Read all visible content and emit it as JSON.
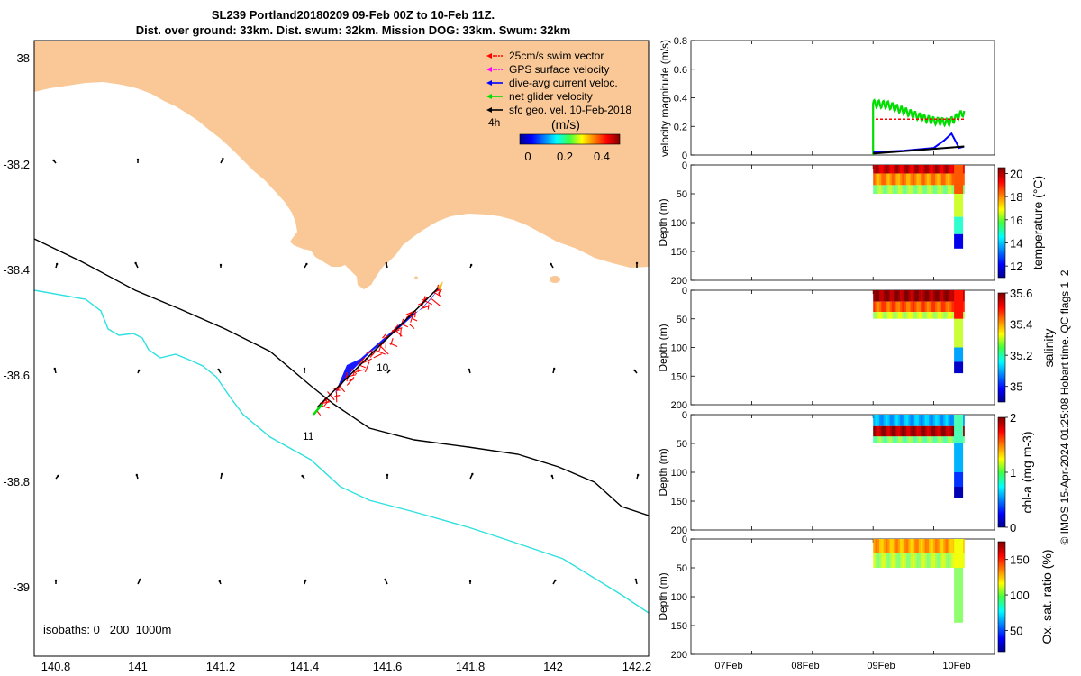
{
  "title_line1": "SL239 Portland20180209 09-Feb 00Z to 10-Feb 11Z.",
  "title_line2": "Dist. over ground: 33km. Dist. swum: 32km. Mission DOG: 33km. Swum: 32km",
  "side_note": "© IMOS 15-Apr-2024 01:25:08 Hobart time. QC flags 1  2",
  "colors": {
    "land": "#f9c896",
    "isobath_200": "#000000",
    "isobath_1000": "#2fe0e0",
    "swim": "#ff0000",
    "gps": "#ff00ff",
    "dive_avg": "#0000ff",
    "net": "#00dd00",
    "sfc_geo": "#000000",
    "mean_curve": "#ff0000",
    "depth_avg_curve": "#000000"
  },
  "map": {
    "x_ticks": [
      "140.8",
      "141",
      "141.2",
      "141.4",
      "141.6",
      "141.8",
      "142",
      "142.2"
    ],
    "y_ticks": [
      "-38",
      "-38.2",
      "-38.4",
      "-38.6",
      "-38.8",
      "-39"
    ],
    "legend": {
      "items": [
        {
          "label": "25cm/s swim vector",
          "color_key": "swim"
        },
        {
          "label": "GPS surface velocity",
          "color_key": "gps"
        },
        {
          "label": "dive-avg current veloc.",
          "color_key": "dive_avg"
        },
        {
          "label": "net glider velocity",
          "color_key": "net"
        },
        {
          "label": "sfc geo. vel. 10-Feb-2018",
          "color_key": "sfc_geo"
        }
      ],
      "interval_label": "4h",
      "colorbar_title": "(m/s)",
      "colorbar_ticks": [
        "0",
        "0.2",
        "0.4"
      ]
    },
    "day_labels": [
      "10",
      "11"
    ],
    "isobath_label": "isobaths: 0   200  1000m"
  },
  "chart_data": [
    {
      "type": "line",
      "panel": "velocity magnitude",
      "ylabel": "velocity magnitude (m/s)",
      "ylim": [
        0,
        0.8
      ],
      "yticks": [
        "0",
        "0.2",
        "0.4",
        "0.6",
        "0.8"
      ],
      "x_dates": [
        "2018-02-06",
        "2018-02-11"
      ],
      "series": [
        {
          "color_key": "net",
          "style": "oscillating",
          "x": [
            "09Feb 00h",
            "09Feb 06h",
            "09Feb 12h",
            "09Feb 18h",
            "10Feb 00h",
            "10Feb 06h",
            "10Feb 12h"
          ],
          "values": [
            0.36,
            0.35,
            0.31,
            0.27,
            0.24,
            0.23,
            0.3
          ]
        },
        {
          "color_key": "mean_curve",
          "style": "dashed",
          "x": [
            "09Feb 01h",
            "10Feb 12h"
          ],
          "values": [
            0.25,
            0.25
          ]
        },
        {
          "color_key": "dive_avg",
          "style": "solid",
          "x": [
            "09Feb 00h",
            "09Feb 12h",
            "10Feb 00h",
            "10Feb 04h",
            "10Feb 07h",
            "10Feb 10h",
            "10Feb 12h"
          ],
          "values": [
            0.02,
            0.03,
            0.05,
            0.1,
            0.15,
            0.05,
            0.06
          ]
        },
        {
          "color_key": "depth_avg_curve",
          "style": "solid",
          "x": [
            "09Feb 00h",
            "10Feb 12h"
          ],
          "values": [
            0.01,
            0.06
          ]
        }
      ]
    },
    {
      "type": "heatmap",
      "panel": "temperature",
      "ylabel": "Depth (m)",
      "yticks": [
        "0",
        "50",
        "100",
        "150",
        "200"
      ],
      "ylim": [
        200,
        0
      ],
      "colorbar_label": "temperature (°C)",
      "colorbar_ticks": [
        "12",
        "14",
        "16",
        "18",
        "20"
      ],
      "clim": [
        11,
        20.5
      ],
      "x_range": [
        "09Feb 00h",
        "10Feb 12h"
      ],
      "depth_layers": [
        {
          "depth_to": 15,
          "value": 19.8
        },
        {
          "depth_to": 35,
          "value": 18.0
        },
        {
          "depth_to": 50,
          "value": 16.0
        }
      ],
      "deep_profile": {
        "x": "10Feb 08h",
        "layers": [
          {
            "depth_to": 50,
            "value": 18.5
          },
          {
            "depth_to": 90,
            "value": 16.5
          },
          {
            "depth_to": 120,
            "value": 15
          },
          {
            "depth_to": 145,
            "value": 12
          }
        ]
      }
    },
    {
      "type": "heatmap",
      "panel": "salinity",
      "ylabel": "Depth (m)",
      "yticks": [
        "0",
        "50",
        "100",
        "150",
        "200"
      ],
      "ylim": [
        200,
        0
      ],
      "colorbar_label": "salinity",
      "colorbar_ticks": [
        "35",
        "35.2",
        "35.4",
        "35.6"
      ],
      "clim": [
        34.9,
        35.6
      ],
      "x_range": [
        "09Feb 00h",
        "10Feb 12h"
      ],
      "depth_layers": [
        {
          "depth_to": 20,
          "value": 35.58
        },
        {
          "depth_to": 38,
          "value": 35.45
        },
        {
          "depth_to": 50,
          "value": 35.3
        }
      ],
      "deep_profile": {
        "x": "10Feb 08h",
        "layers": [
          {
            "depth_to": 50,
            "value": 35.5
          },
          {
            "depth_to": 100,
            "value": 35.3
          },
          {
            "depth_to": 125,
            "value": 35.1
          },
          {
            "depth_to": 145,
            "value": 34.95
          }
        ]
      }
    },
    {
      "type": "heatmap",
      "panel": "chl-a",
      "ylabel": "Depth (m)",
      "yticks": [
        "0",
        "50",
        "100",
        "150",
        "200"
      ],
      "ylim": [
        200,
        0
      ],
      "colorbar_label": "chl-a (mg m-3)",
      "colorbar_ticks": [
        "0",
        "1",
        "2"
      ],
      "clim": [
        0,
        2
      ],
      "x_range": [
        "09Feb 00h",
        "10Feb 12h"
      ],
      "depth_layers": [
        {
          "depth_to": 20,
          "value": 0.6
        },
        {
          "depth_to": 38,
          "value": 1.9
        },
        {
          "depth_to": 50,
          "value": 1.0
        }
      ],
      "deep_profile": {
        "x": "10Feb 08h",
        "layers": [
          {
            "depth_to": 50,
            "value": 0.9
          },
          {
            "depth_to": 100,
            "value": 0.6
          },
          {
            "depth_to": 125,
            "value": 0.35
          },
          {
            "depth_to": 145,
            "value": 0.1
          }
        ]
      }
    },
    {
      "type": "heatmap",
      "panel": "oxygen saturation",
      "ylabel": "Depth (m)",
      "yticks": [
        "0",
        "50",
        "100",
        "150",
        "200"
      ],
      "ylim": [
        200,
        0
      ],
      "colorbar_label": "Ox. sat. ratio (%)",
      "colorbar_ticks": [
        "50",
        "100",
        "150"
      ],
      "clim": [
        20,
        175
      ],
      "x_range": [
        "09Feb 00h",
        "10Feb 12h"
      ],
      "xticks": [
        "07Feb",
        "08Feb",
        "09Feb",
        "10Feb"
      ],
      "depth_layers": [
        {
          "depth_to": 25,
          "value": 130
        },
        {
          "depth_to": 50,
          "value": 105
        }
      ],
      "deep_profile": {
        "x": "10Feb 08h",
        "layers": [
          {
            "depth_to": 50,
            "value": 115
          },
          {
            "depth_to": 145,
            "value": 100
          }
        ]
      }
    }
  ]
}
